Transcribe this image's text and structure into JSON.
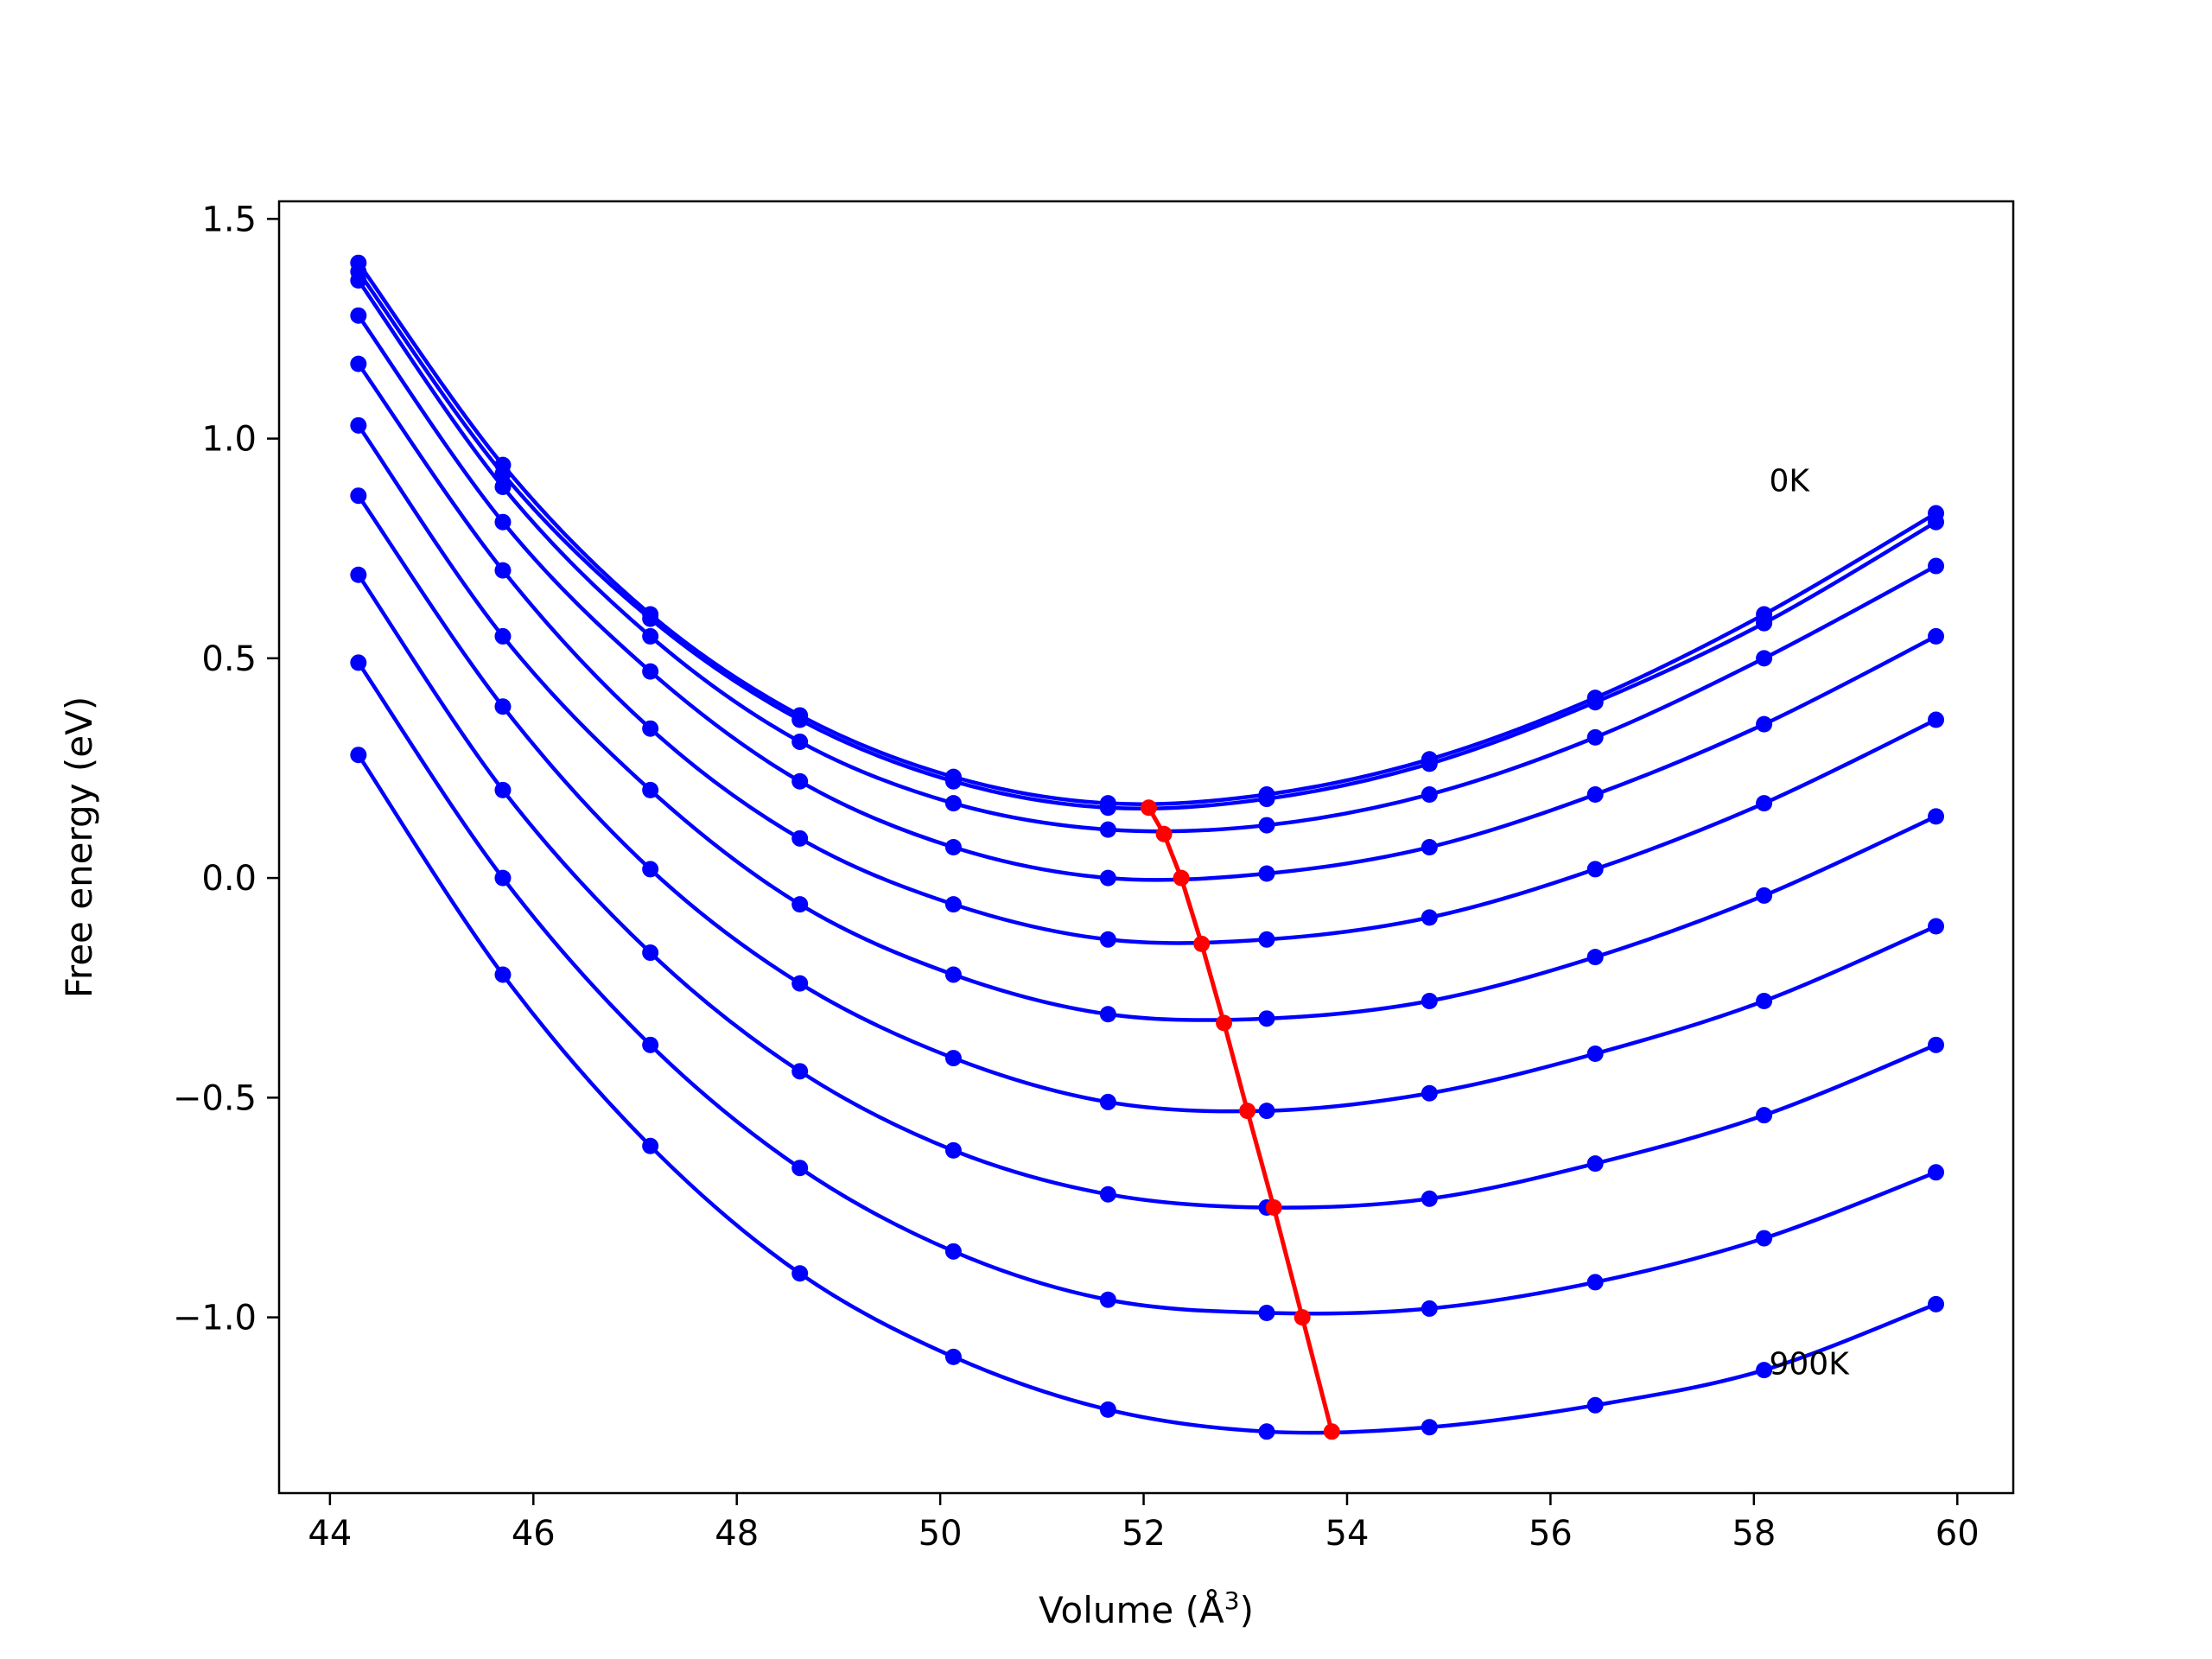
{
  "chart_data": {
    "type": "line",
    "title": "",
    "xlabel": "Volume (Å",
    "xlabel_sup": "3",
    "xlabel_close": ")",
    "ylabel": "Free energy (eV)",
    "xlim": [
      43.5,
      60.55
    ],
    "ylim": [
      -1.4,
      1.54
    ],
    "xticks": [
      {
        "value": 44,
        "label": "44"
      },
      {
        "value": 46,
        "label": "46"
      },
      {
        "value": 48,
        "label": "48"
      },
      {
        "value": 50,
        "label": "50"
      },
      {
        "value": 52,
        "label": "52"
      },
      {
        "value": 54,
        "label": "54"
      },
      {
        "value": 56,
        "label": "56"
      },
      {
        "value": 58,
        "label": "58"
      },
      {
        "value": 60,
        "label": "60"
      }
    ],
    "yticks": [
      {
        "value": 1.5,
        "label": "1.5"
      },
      {
        "value": 1.0,
        "label": "1.0"
      },
      {
        "value": 0.5,
        "label": "0.5"
      },
      {
        "value": 0.0,
        "label": "0.0"
      },
      {
        "value": -0.5,
        "label": "−0.5"
      },
      {
        "value": -1.0,
        "label": "−1.0"
      }
    ],
    "grid": false,
    "colors": {
      "curves": "#0000ff",
      "minima": "#ff0000",
      "axes": "#000000"
    },
    "volumes": [
      44.28,
      45.7,
      47.15,
      48.62,
      50.13,
      51.65,
      53.21,
      54.81,
      56.44,
      58.1,
      59.79
    ],
    "series": [
      {
        "points": [
          1.4,
          0.94,
          0.6,
          0.37,
          0.23,
          0.17,
          0.19,
          0.27,
          0.41,
          0.6,
          0.83
        ]
      },
      {
        "points": [
          1.38,
          0.92,
          0.59,
          0.36,
          0.22,
          0.16,
          0.18,
          0.26,
          0.4,
          0.58,
          0.81
        ]
      },
      {
        "points": [
          1.36,
          0.89,
          0.55,
          0.31,
          0.17,
          0.11,
          0.12,
          0.19,
          0.32,
          0.5,
          0.71
        ]
      },
      {
        "points": [
          1.28,
          0.81,
          0.47,
          0.22,
          0.07,
          0.0,
          0.01,
          0.07,
          0.19,
          0.35,
          0.55
        ]
      },
      {
        "points": [
          1.17,
          0.7,
          0.34,
          0.09,
          -0.06,
          -0.14,
          -0.14,
          -0.09,
          0.02,
          0.17,
          0.36
        ]
      },
      {
        "points": [
          1.03,
          0.55,
          0.2,
          -0.06,
          -0.22,
          -0.31,
          -0.32,
          -0.28,
          -0.18,
          -0.04,
          0.14
        ]
      },
      {
        "points": [
          0.87,
          0.39,
          0.02,
          -0.24,
          -0.41,
          -0.51,
          -0.53,
          -0.49,
          -0.4,
          -0.28,
          -0.11
        ]
      },
      {
        "points": [
          0.69,
          0.2,
          -0.17,
          -0.44,
          -0.62,
          -0.72,
          -0.75,
          -0.73,
          -0.65,
          -0.54,
          -0.38
        ]
      },
      {
        "points": [
          0.49,
          0.0,
          -0.38,
          -0.66,
          -0.85,
          -0.96,
          -0.99,
          -0.98,
          -0.92,
          -0.82,
          -0.67
        ]
      },
      {
        "points": [
          0.28,
          -0.22,
          -0.61,
          -0.9,
          -1.09,
          -1.21,
          -1.26,
          -1.25,
          -1.2,
          -1.12,
          -0.97
        ]
      }
    ],
    "minima": {
      "x": [
        52.05,
        52.2,
        52.37,
        52.57,
        52.79,
        53.02,
        53.28,
        53.56,
        53.85
      ],
      "y": [
        0.16,
        0.1,
        0.0,
        -0.15,
        -0.33,
        -0.53,
        -0.75,
        -1.0,
        -1.26
      ]
    },
    "annotations": [
      {
        "text": "0K",
        "x": 58.15,
        "y": 0.88
      },
      {
        "text": "900K",
        "x": 58.15,
        "y": -1.13
      }
    ]
  }
}
